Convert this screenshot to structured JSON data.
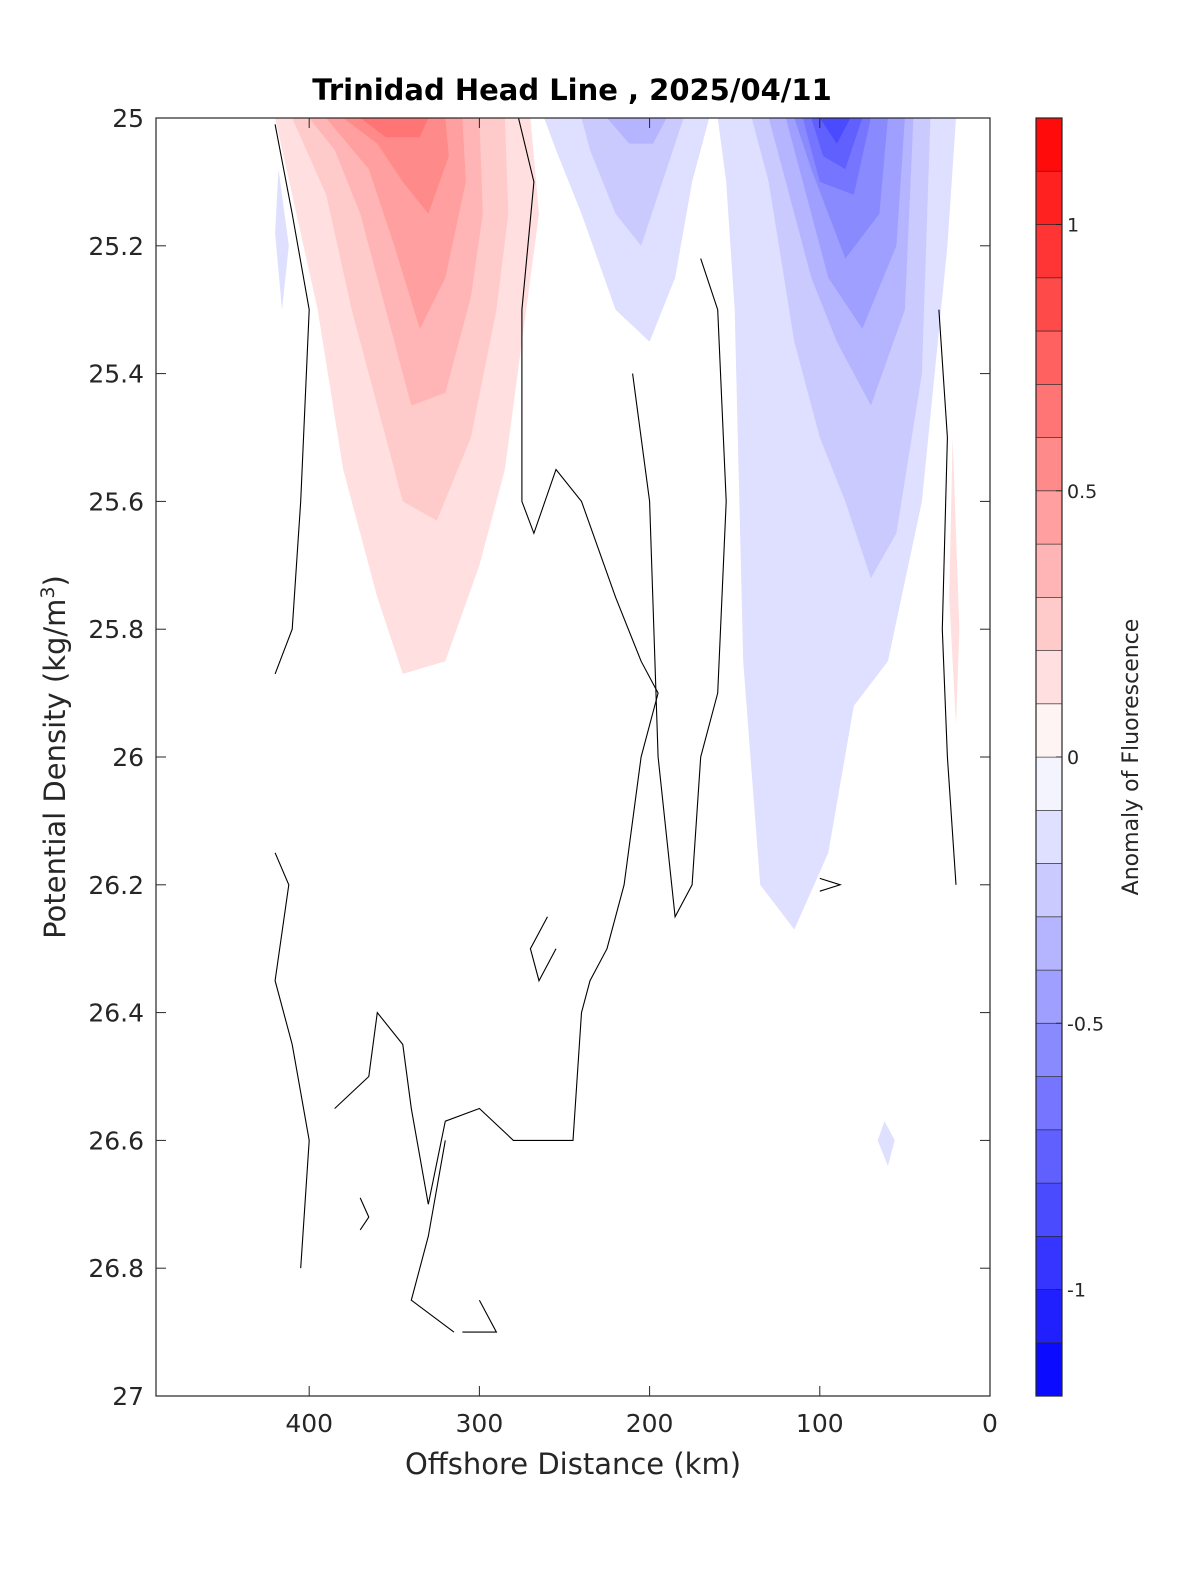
{
  "chart_data": {
    "type": "heatmap",
    "title": "Trinidad Head Line , 2025/04/11",
    "xlabel": "Offshore Distance (km)",
    "ylabel_main": "Potential Density (kg/m",
    "ylabel_sup": "3",
    "ylabel_end": ")",
    "colorbar_label": "Anomaly of Fluorescence",
    "xlim": [
      490,
      0
    ],
    "ylim": [
      25,
      27
    ],
    "x_reversed": true,
    "y_reversed": true,
    "xticks": [
      400,
      300,
      200,
      100,
      0
    ],
    "xtick_labels": [
      "400",
      "300",
      "200",
      "100",
      "0"
    ],
    "yticks": [
      25,
      25.2,
      25.4,
      25.6,
      25.8,
      26,
      26.2,
      26.4,
      26.6,
      26.8,
      27
    ],
    "ytick_labels": [
      "25",
      "25.2",
      "25.4",
      "25.6",
      "25.8",
      "26",
      "26.2",
      "26.4",
      "26.6",
      "26.8",
      "27"
    ],
    "colorbar": {
      "clim": [
        -1.2,
        1.2
      ],
      "ticks": [
        1,
        0.5,
        0,
        -0.5,
        -1
      ],
      "tick_labels": [
        "1",
        "0.5",
        "0",
        "-0.5",
        "-1"
      ],
      "levels": [
        -1.2,
        -1.1,
        -1.0,
        -0.9,
        -0.8,
        -0.7,
        -0.6,
        -0.5,
        -0.4,
        -0.3,
        -0.2,
        -0.1,
        0,
        0.1,
        0.2,
        0.3,
        0.4,
        0.5,
        0.6,
        0.7,
        0.8,
        0.9,
        1.0,
        1.1,
        1.2
      ],
      "positive_color": "#ff0000",
      "negative_color": "#0000ff",
      "neutral_color": "#ffffff"
    },
    "filled_regions": [
      {
        "value": 0.15,
        "points": [
          [
            420,
            25
          ],
          [
            270,
            25
          ],
          [
            265,
            25.15
          ],
          [
            275,
            25.35
          ],
          [
            285,
            25.55
          ],
          [
            300,
            25.7
          ],
          [
            320,
            25.85
          ],
          [
            345,
            25.87
          ],
          [
            360,
            25.75
          ],
          [
            380,
            25.55
          ],
          [
            395,
            25.3
          ],
          [
            410,
            25.12
          ]
        ]
      },
      {
        "value": 0.25,
        "points": [
          [
            410,
            25
          ],
          [
            285,
            25
          ],
          [
            283,
            25.15
          ],
          [
            290,
            25.3
          ],
          [
            305,
            25.5
          ],
          [
            325,
            25.63
          ],
          [
            345,
            25.6
          ],
          [
            360,
            25.45
          ],
          [
            375,
            25.3
          ],
          [
            390,
            25.12
          ]
        ]
      },
      {
        "value": 0.35,
        "points": [
          [
            400,
            25
          ],
          [
            300,
            25
          ],
          [
            298,
            25.15
          ],
          [
            305,
            25.28
          ],
          [
            320,
            25.43
          ],
          [
            340,
            25.45
          ],
          [
            355,
            25.3
          ],
          [
            370,
            25.15
          ],
          [
            385,
            25.05
          ]
        ]
      },
      {
        "value": 0.45,
        "points": [
          [
            390,
            25
          ],
          [
            310,
            25
          ],
          [
            308,
            25.1
          ],
          [
            320,
            25.25
          ],
          [
            335,
            25.33
          ],
          [
            350,
            25.2
          ],
          [
            365,
            25.08
          ]
        ]
      },
      {
        "value": 0.55,
        "points": [
          [
            380,
            25
          ],
          [
            320,
            25
          ],
          [
            318,
            25.06
          ],
          [
            330,
            25.15
          ],
          [
            345,
            25.1
          ],
          [
            360,
            25.04
          ]
        ]
      },
      {
        "value": 0.65,
        "points": [
          [
            370,
            25
          ],
          [
            330,
            25
          ],
          [
            335,
            25.03
          ],
          [
            355,
            25.03
          ]
        ]
      },
      {
        "value": 0.15,
        "points": [
          [
            22,
            25.5
          ],
          [
            18,
            25.8
          ],
          [
            20,
            25.95
          ],
          [
            24,
            25.75
          ]
        ]
      },
      {
        "value": -0.15,
        "points": [
          [
            418,
            25.08
          ],
          [
            412,
            25.2
          ],
          [
            416,
            25.3
          ],
          [
            420,
            25.18
          ]
        ]
      },
      {
        "value": -0.15,
        "points": [
          [
            262,
            25
          ],
          [
            165,
            25
          ],
          [
            175,
            25.1
          ],
          [
            185,
            25.25
          ],
          [
            200,
            25.35
          ],
          [
            220,
            25.3
          ],
          [
            240,
            25.15
          ],
          [
            255,
            25.05
          ]
        ]
      },
      {
        "value": -0.25,
        "points": [
          [
            240,
            25
          ],
          [
            180,
            25
          ],
          [
            190,
            25.08
          ],
          [
            205,
            25.2
          ],
          [
            220,
            25.15
          ],
          [
            235,
            25.05
          ]
        ]
      },
      {
        "value": -0.35,
        "points": [
          [
            225,
            25
          ],
          [
            190,
            25
          ],
          [
            198,
            25.04
          ],
          [
            212,
            25.04
          ]
        ]
      },
      {
        "value": -0.15,
        "points": [
          [
            160,
            25
          ],
          [
            20,
            25
          ],
          [
            25,
            25.2
          ],
          [
            40,
            25.6
          ],
          [
            60,
            25.85
          ],
          [
            80,
            25.92
          ],
          [
            95,
            26.15
          ],
          [
            115,
            26.27
          ],
          [
            135,
            26.2
          ],
          [
            145,
            25.85
          ],
          [
            150,
            25.3
          ],
          [
            155,
            25.1
          ]
        ]
      },
      {
        "value": -0.25,
        "points": [
          [
            140,
            25
          ],
          [
            35,
            25
          ],
          [
            40,
            25.4
          ],
          [
            55,
            25.65
          ],
          [
            70,
            25.72
          ],
          [
            85,
            25.6
          ],
          [
            100,
            25.5
          ],
          [
            115,
            25.35
          ],
          [
            130,
            25.1
          ]
        ]
      },
      {
        "value": -0.35,
        "points": [
          [
            130,
            25
          ],
          [
            45,
            25
          ],
          [
            50,
            25.3
          ],
          [
            70,
            25.45
          ],
          [
            90,
            25.35
          ],
          [
            105,
            25.25
          ],
          [
            120,
            25.1
          ]
        ]
      },
      {
        "value": -0.45,
        "points": [
          [
            120,
            25
          ],
          [
            50,
            25
          ],
          [
            55,
            25.2
          ],
          [
            75,
            25.33
          ],
          [
            95,
            25.25
          ],
          [
            110,
            25.1
          ]
        ]
      },
      {
        "value": -0.55,
        "points": [
          [
            115,
            25
          ],
          [
            60,
            25
          ],
          [
            65,
            25.15
          ],
          [
            85,
            25.22
          ],
          [
            105,
            25.08
          ]
        ]
      },
      {
        "value": -0.65,
        "points": [
          [
            110,
            25
          ],
          [
            70,
            25
          ],
          [
            80,
            25.12
          ],
          [
            100,
            25.1
          ]
        ]
      },
      {
        "value": -0.75,
        "points": [
          [
            105,
            25
          ],
          [
            75,
            25
          ],
          [
            85,
            25.08
          ],
          [
            98,
            25.06
          ]
        ]
      },
      {
        "value": -0.85,
        "points": [
          [
            100,
            25
          ],
          [
            82,
            25
          ],
          [
            90,
            25.04
          ]
        ]
      },
      {
        "value": -0.15,
        "points": [
          [
            62,
            26.57
          ],
          [
            56,
            26.6
          ],
          [
            60,
            26.64
          ],
          [
            66,
            26.6
          ]
        ]
      }
    ],
    "zero_contours": [
      [
        [
          420,
          25.01
        ],
        [
          410,
          25.15
        ],
        [
          400,
          25.3
        ],
        [
          405,
          25.6
        ],
        [
          410,
          25.8
        ],
        [
          420,
          25.87
        ]
      ],
      [
        [
          277,
          25
        ],
        [
          268,
          25.1
        ],
        [
          275,
          25.3
        ],
        [
          275,
          25.6
        ],
        [
          268,
          25.65
        ],
        [
          255,
          25.55
        ],
        [
          240,
          25.6
        ],
        [
          220,
          25.75
        ],
        [
          205,
          25.85
        ],
        [
          195,
          25.9
        ],
        [
          205,
          26.0
        ],
        [
          215,
          26.2
        ],
        [
          225,
          26.3
        ],
        [
          235,
          26.35
        ],
        [
          240,
          26.4
        ],
        [
          245,
          26.6
        ],
        [
          265,
          26.6
        ],
        [
          280,
          26.6
        ],
        [
          300,
          26.55
        ],
        [
          320,
          26.57
        ],
        [
          330,
          26.7
        ],
        [
          340,
          26.55
        ],
        [
          345,
          26.45
        ],
        [
          360,
          26.4
        ],
        [
          365,
          26.5
        ],
        [
          385,
          26.55
        ]
      ],
      [
        [
          170,
          25.22
        ],
        [
          160,
          25.3
        ],
        [
          155,
          25.6
        ],
        [
          160,
          25.9
        ],
        [
          170,
          26.0
        ],
        [
          175,
          26.2
        ],
        [
          185,
          26.25
        ],
        [
          195,
          26.0
        ],
        [
          200,
          25.6
        ],
        [
          210,
          25.4
        ]
      ],
      [
        [
          420,
          26.15
        ],
        [
          412,
          26.2
        ],
        [
          420,
          26.35
        ],
        [
          410,
          26.45
        ],
        [
          400,
          26.6
        ],
        [
          405,
          26.8
        ]
      ],
      [
        [
          260,
          26.25
        ],
        [
          270,
          26.3
        ],
        [
          265,
          26.35
        ],
        [
          255,
          26.3
        ]
      ],
      [
        [
          30,
          25.3
        ],
        [
          25,
          25.5
        ],
        [
          28,
          25.8
        ],
        [
          25,
          26.0
        ],
        [
          20,
          26.2
        ]
      ],
      [
        [
          370,
          26.69
        ],
        [
          365,
          26.72
        ],
        [
          370,
          26.74
        ]
      ],
      [
        [
          320,
          26.6
        ],
        [
          330,
          26.75
        ],
        [
          340,
          26.85
        ],
        [
          315,
          26.9
        ]
      ],
      [
        [
          300,
          26.85
        ],
        [
          290,
          26.9
        ],
        [
          310,
          26.9
        ]
      ],
      [
        [
          100,
          26.19
        ],
        [
          88,
          26.2
        ],
        [
          100,
          26.21
        ]
      ]
    ]
  }
}
